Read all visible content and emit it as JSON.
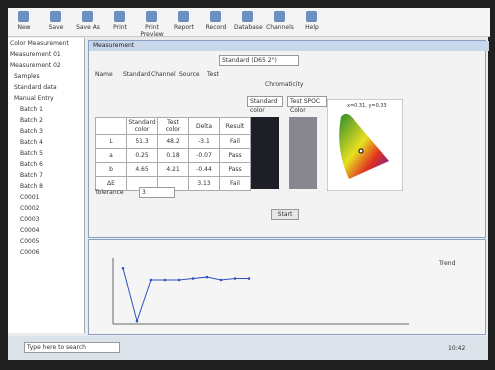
{
  "toolbar": {
    "items": [
      "New",
      "Save",
      "Save As",
      "Print",
      "Print Preview",
      "Report",
      "Record",
      "Database",
      "Channels",
      "Help"
    ]
  },
  "tree": {
    "items": [
      "Color Measurement",
      "Measurement 01",
      "Measurement 02",
      "Samples",
      "Standard data",
      "Manual Entry",
      "Batch 1",
      "Batch 2",
      "Batch 3",
      "Batch 4",
      "Batch 5",
      "Batch 6",
      "Batch 7",
      "Batch 8",
      "C0001",
      "C0002",
      "C0003",
      "C0004",
      "C0005",
      "C0006"
    ]
  },
  "window": {
    "title": "Measurement",
    "sample": "Standard (D65 2°)",
    "form": {
      "labels": [
        "Name",
        "Standard",
        "Channel",
        "Source",
        "Test"
      ]
    },
    "table": {
      "header": [
        "",
        "Standard color",
        "Test color",
        "Delta",
        "Result"
      ],
      "rows": [
        [
          "L",
          "51.3",
          "48.2",
          "-3.1",
          "Fail"
        ],
        [
          "a",
          "0.25",
          "0.18",
          "-0.07",
          "Pass"
        ],
        [
          "b",
          "4.65",
          "4.21",
          "-0.44",
          "Pass"
        ],
        [
          "ΔE",
          "",
          "",
          "3.13",
          "Fail"
        ]
      ]
    },
    "tolerance_label": "Tolerance",
    "tolerance_value": "3",
    "color_title": "Chromaticity",
    "standard_label": "Standard color",
    "test_label": "Test SPOC Color",
    "diagram_label": "x=0.31, y=0.33",
    "button": "Start"
  },
  "trend": {
    "title": "Trend",
    "values": [
      3.8,
      0.2,
      3.0,
      3.0,
      3.0,
      3.1,
      3.2,
      3.0,
      3.1,
      3.1
    ],
    "ylim": [
      0,
      4.5
    ]
  },
  "taskbar": {
    "search": "Type here to search",
    "time": "10:42"
  }
}
